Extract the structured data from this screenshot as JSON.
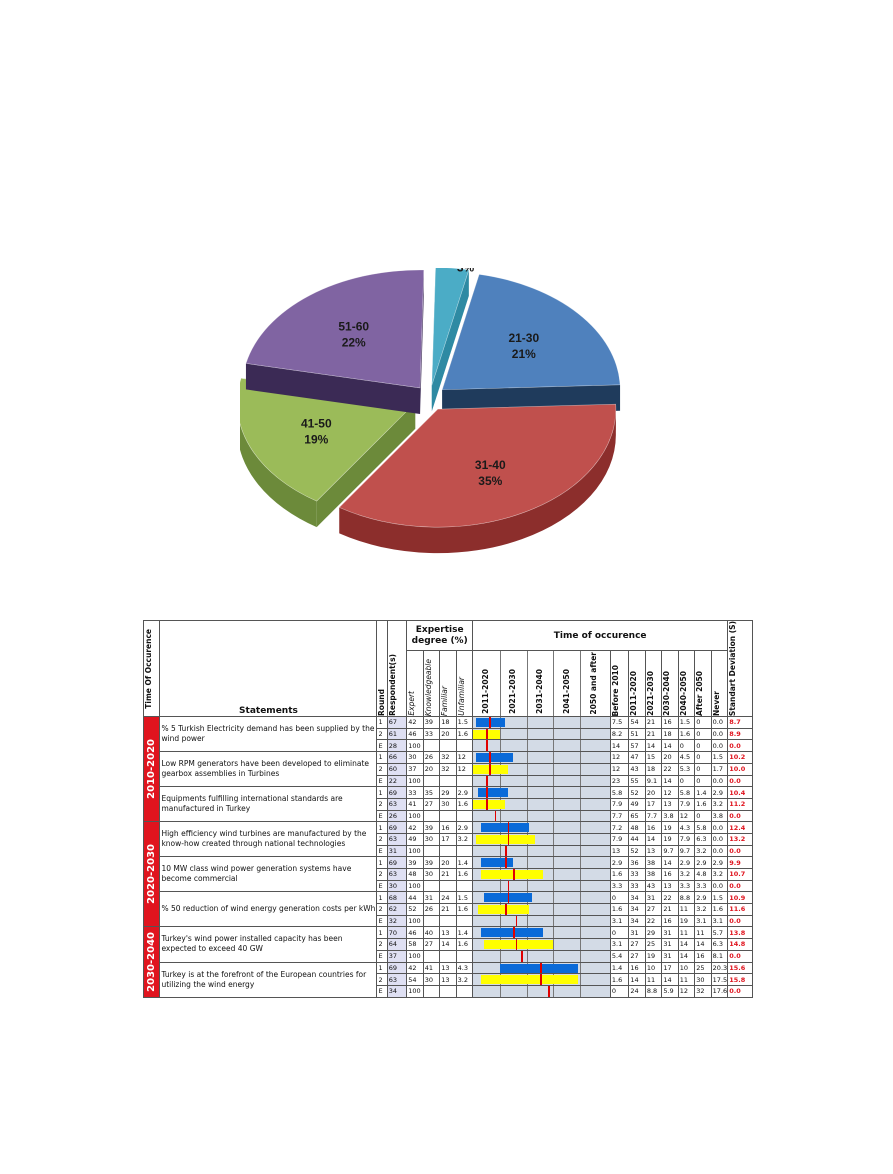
{
  "chart_data": [
    {
      "type": "pie",
      "categories": [
        "21-30",
        "31-40",
        "41-50",
        "51-60",
        "Over 60"
      ],
      "values": [
        21,
        35,
        19,
        22,
        3
      ],
      "labels": [
        "21%",
        "35%",
        "19%",
        "22%",
        "3%"
      ],
      "colors": [
        "#4f81bd",
        "#c0504d",
        "#9bbb59",
        "#8064a2",
        "#4bacc6"
      ],
      "side_colors": [
        "#1f3b5c",
        "#8c2e2c",
        "#6c8a3a",
        "#3b2a55",
        "#2e8aa3"
      ]
    },
    {
      "type": "table",
      "headers": {
        "time": "Time Of Occurence",
        "statements": "Statements",
        "round": "Round",
        "respondents": "Respondent(s)",
        "expertise": "Expertise degree (%)",
        "expertise_cols": [
          "Expert",
          "Knowledgeable",
          "Familiar",
          "Unfamiliar"
        ],
        "occurrence": "Time of occurence",
        "timeline_cols": [
          "2011-2020",
          "2021-2030",
          "2031-2040",
          "2041-2050",
          "2050 and after"
        ],
        "pct_cols": [
          "Before 2010",
          "2011-2020",
          "2021-2030",
          "2030-2040",
          "2040-2050",
          "After 2050",
          "Never"
        ],
        "sd": "Standart Deviation (S)"
      },
      "periods": [
        {
          "label": "2010-2020",
          "statements": [
            {
              "text": "% 5 Turkish Electricity demand has been supplied by the wind power",
              "rounds": [
                {
                  "round": "1",
                  "resp": "67",
                  "exp": [
                    "42",
                    "39",
                    "18",
                    "1.5"
                  ],
                  "pct": [
                    "7.5",
                    "54",
                    "21",
                    "16",
                    "1.5",
                    "0",
                    "0.0"
                  ],
                  "sd": "8.7"
                },
                {
                  "round": "2",
                  "resp": "61",
                  "exp": [
                    "46",
                    "33",
                    "20",
                    "1.6"
                  ],
                  "pct": [
                    "8.2",
                    "51",
                    "21",
                    "18",
                    "1.6",
                    "0",
                    "0.0"
                  ],
                  "sd": "8.9"
                },
                {
                  "round": "E",
                  "resp": "28",
                  "exp": [
                    "100",
                    "",
                    "",
                    ""
                  ],
                  "pct": [
                    "14",
                    "57",
                    "14",
                    "14",
                    "0",
                    "0",
                    "0.0"
                  ],
                  "sd": "0.0"
                }
              ]
            },
            {
              "text": "Low RPM generators have been developed to eliminate gearbox assemblies in Turbines",
              "rounds": [
                {
                  "round": "1",
                  "resp": "66",
                  "exp": [
                    "30",
                    "26",
                    "32",
                    "12"
                  ],
                  "pct": [
                    "12",
                    "47",
                    "15",
                    "20",
                    "4.5",
                    "0",
                    "1.5"
                  ],
                  "sd": "10.2"
                },
                {
                  "round": "2",
                  "resp": "60",
                  "exp": [
                    "37",
                    "20",
                    "32",
                    "12"
                  ],
                  "pct": [
                    "12",
                    "43",
                    "18",
                    "22",
                    "5.3",
                    "0",
                    "1.7"
                  ],
                  "sd": "10.0"
                },
                {
                  "round": "E",
                  "resp": "22",
                  "exp": [
                    "100",
                    "",
                    "",
                    ""
                  ],
                  "pct": [
                    "23",
                    "55",
                    "9.1",
                    "14",
                    "0",
                    "0",
                    "0.0"
                  ],
                  "sd": "0.0"
                }
              ]
            },
            {
              "text": "Equipments fulfilling international standards are manufactured in Turkey",
              "rounds": [
                {
                  "round": "1",
                  "resp": "69",
                  "exp": [
                    "33",
                    "35",
                    "29",
                    "2.9"
                  ],
                  "pct": [
                    "5.8",
                    "52",
                    "20",
                    "12",
                    "5.8",
                    "1.4",
                    "2.9"
                  ],
                  "sd": "10.4"
                },
                {
                  "round": "2",
                  "resp": "63",
                  "exp": [
                    "41",
                    "27",
                    "30",
                    "1.6"
                  ],
                  "pct": [
                    "7.9",
                    "49",
                    "17",
                    "13",
                    "7.9",
                    "1.6",
                    "3.2"
                  ],
                  "sd": "11.2"
                },
                {
                  "round": "E",
                  "resp": "26",
                  "exp": [
                    "100",
                    "",
                    "",
                    ""
                  ],
                  "pct": [
                    "7.7",
                    "65",
                    "7.7",
                    "3.8",
                    "12",
                    "0",
                    "3.8"
                  ],
                  "sd": "0.0"
                }
              ]
            }
          ]
        },
        {
          "label": "2020-2030",
          "statements": [
            {
              "text": "High efficiency wind turbines are manufactured by the know-how created through national technologies",
              "rounds": [
                {
                  "round": "1",
                  "resp": "69",
                  "exp": [
                    "42",
                    "39",
                    "16",
                    "2.9"
                  ],
                  "pct": [
                    "7.2",
                    "48",
                    "16",
                    "19",
                    "4.3",
                    "5.8",
                    "0.0"
                  ],
                  "sd": "12.4"
                },
                {
                  "round": "2",
                  "resp": "63",
                  "exp": [
                    "49",
                    "30",
                    "17",
                    "3.2"
                  ],
                  "pct": [
                    "7.9",
                    "44",
                    "14",
                    "19",
                    "7.9",
                    "6.3",
                    "0.0"
                  ],
                  "sd": "13.2"
                },
                {
                  "round": "E",
                  "resp": "31",
                  "exp": [
                    "100",
                    "",
                    "",
                    ""
                  ],
                  "pct": [
                    "13",
                    "52",
                    "13",
                    "9.7",
                    "9.7",
                    "3.2",
                    "0.0"
                  ],
                  "sd": "0.0"
                }
              ]
            },
            {
              "text": "10 MW class wind power generation systems have become commercial",
              "rounds": [
                {
                  "round": "1",
                  "resp": "69",
                  "exp": [
                    "39",
                    "39",
                    "20",
                    "1.4"
                  ],
                  "pct": [
                    "2.9",
                    "36",
                    "38",
                    "14",
                    "2.9",
                    "2.9",
                    "2.9"
                  ],
                  "sd": "9.9"
                },
                {
                  "round": "2",
                  "resp": "63",
                  "exp": [
                    "48",
                    "30",
                    "21",
                    "1.6"
                  ],
                  "pct": [
                    "1.6",
                    "33",
                    "38",
                    "16",
                    "3.2",
                    "4.8",
                    "3.2"
                  ],
                  "sd": "10.7"
                },
                {
                  "round": "E",
                  "resp": "30",
                  "exp": [
                    "100",
                    "",
                    "",
                    ""
                  ],
                  "pct": [
                    "3.3",
                    "33",
                    "43",
                    "13",
                    "3.3",
                    "3.3",
                    "0.0"
                  ],
                  "sd": "0.0"
                }
              ]
            },
            {
              "text": "% 50 reduction of wind energy generation costs per kWh",
              "rounds": [
                {
                  "round": "1",
                  "resp": "68",
                  "exp": [
                    "44",
                    "31",
                    "24",
                    "1.5"
                  ],
                  "pct": [
                    "0",
                    "34",
                    "31",
                    "22",
                    "8.8",
                    "2.9",
                    "1.5"
                  ],
                  "sd": "10.9"
                },
                {
                  "round": "2",
                  "resp": "62",
                  "exp": [
                    "52",
                    "26",
                    "21",
                    "1.6"
                  ],
                  "pct": [
                    "1.6",
                    "34",
                    "27",
                    "21",
                    "11",
                    "3.2",
                    "1.6"
                  ],
                  "sd": "11.6"
                },
                {
                  "round": "E",
                  "resp": "32",
                  "exp": [
                    "100",
                    "",
                    "",
                    ""
                  ],
                  "pct": [
                    "3.1",
                    "34",
                    "22",
                    "16",
                    "19",
                    "3.1",
                    "3.1"
                  ],
                  "sd": "0.0"
                }
              ]
            }
          ]
        },
        {
          "label": "2030-2040",
          "statements": [
            {
              "text": "Turkey's wind power installed capacity has been expected to exceed 40 GW",
              "rounds": [
                {
                  "round": "1",
                  "resp": "70",
                  "exp": [
                    "46",
                    "40",
                    "13",
                    "1.4"
                  ],
                  "pct": [
                    "0",
                    "31",
                    "29",
                    "31",
                    "11",
                    "11",
                    "5.7"
                  ],
                  "sd": "13.8"
                },
                {
                  "round": "2",
                  "resp": "64",
                  "exp": [
                    "58",
                    "27",
                    "14",
                    "1.6"
                  ],
                  "pct": [
                    "3.1",
                    "27",
                    "25",
                    "31",
                    "14",
                    "14",
                    "6.3"
                  ],
                  "sd": "14.8"
                },
                {
                  "round": "E",
                  "resp": "37",
                  "exp": [
                    "100",
                    "",
                    "",
                    ""
                  ],
                  "pct": [
                    "5.4",
                    "27",
                    "19",
                    "31",
                    "14",
                    "16",
                    "8.1"
                  ],
                  "sd": "0.0"
                }
              ]
            },
            {
              "text": "Turkey is at the forefront of the European countries for utilizing the wind energy",
              "rounds": [
                {
                  "round": "1",
                  "resp": "69",
                  "exp": [
                    "42",
                    "41",
                    "13",
                    "4.3"
                  ],
                  "pct": [
                    "1.4",
                    "16",
                    "10",
                    "17",
                    "10",
                    "25",
                    "20.3"
                  ],
                  "sd": "15.6"
                },
                {
                  "round": "2",
                  "resp": "63",
                  "exp": [
                    "54",
                    "30",
                    "13",
                    "3.2"
                  ],
                  "pct": [
                    "1.6",
                    "14",
                    "11",
                    "14",
                    "11",
                    "30",
                    "17.5"
                  ],
                  "sd": "15.8"
                },
                {
                  "round": "E",
                  "resp": "34",
                  "exp": [
                    "100",
                    "",
                    "",
                    ""
                  ],
                  "pct": [
                    "0",
                    "24",
                    "8.8",
                    "5.9",
                    "12",
                    "32",
                    "17.6"
                  ],
                  "sd": "0.0"
                }
              ]
            }
          ]
        }
      ],
      "timeline_bars": [
        [
          [
            0.1,
            1.2
          ],
          [
            0.0,
            1.0
          ],
          [
            0.9,
            0.9
          ]
        ],
        [
          [
            0.1,
            1.5
          ],
          [
            0.0,
            1.3
          ],
          [
            0.5,
            0.5
          ]
        ],
        [
          [
            0.2,
            1.3
          ],
          [
            0.0,
            1.2
          ],
          [
            0.8,
            0.8
          ]
        ],
        [
          [
            0.3,
            2.1
          ],
          [
            0.1,
            2.3
          ],
          [
            1.2,
            1.2
          ]
        ],
        [
          [
            0.3,
            1.5
          ],
          [
            0.3,
            2.6
          ],
          [
            1.3,
            1.3
          ]
        ],
        [
          [
            0.4,
            2.2
          ],
          [
            0.2,
            2.1
          ],
          [
            1.6,
            1.6
          ]
        ],
        [
          [
            0.3,
            2.6
          ],
          [
            0.4,
            3.0
          ],
          [
            1.8,
            1.8
          ]
        ],
        [
          [
            1.0,
            3.9
          ],
          [
            0.3,
            3.9
          ],
          [
            2.8,
            2.8
          ]
        ]
      ],
      "timeline_medians": [
        [
          0.6,
          0.5,
          0.5
        ],
        [
          0.6,
          0.6,
          0.5
        ],
        [
          0.5,
          0.5,
          0.8
        ],
        [
          1.3,
          1.3,
          1.2
        ],
        [
          1.2,
          1.5,
          1.3
        ],
        [
          1.3,
          1.2,
          1.6
        ],
        [
          1.5,
          1.6,
          1.8
        ],
        [
          2.5,
          2.5,
          2.8
        ]
      ],
      "bar_colors": [
        "#0a6ad8",
        "#ffff00"
      ],
      "median_color": "#e00000"
    }
  ]
}
